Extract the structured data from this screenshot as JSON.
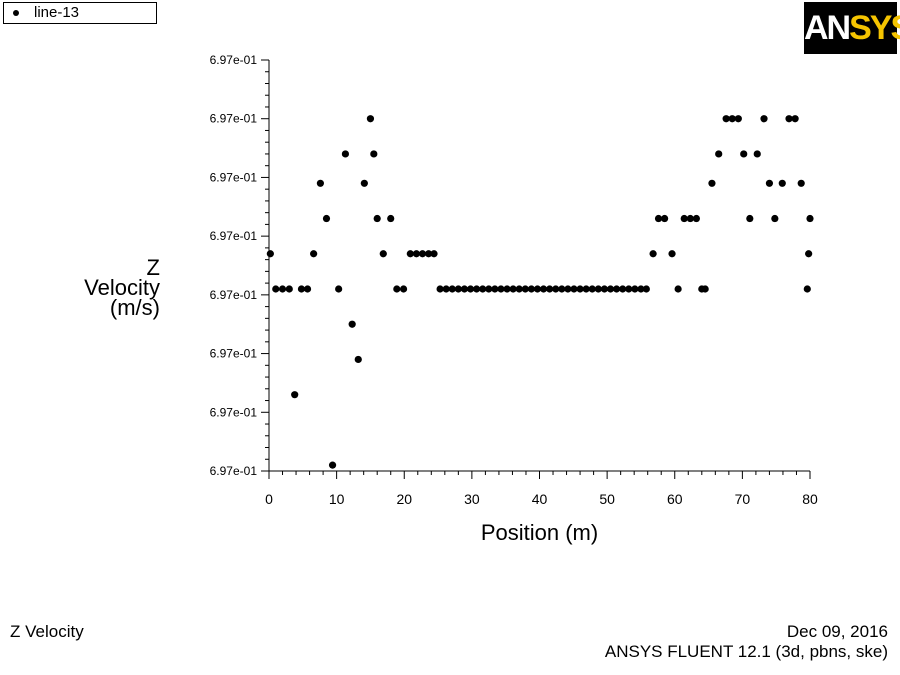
{
  "legend": {
    "label": "line-13"
  },
  "logo": {
    "text_main": "AN",
    "text_accent": "SYS"
  },
  "footer": {
    "left": "Z Velocity",
    "right_date": "Dec 09, 2016",
    "right_software": "ANSYS FLUENT 12.1 (3d, pbns, ske)"
  },
  "chart_data": {
    "type": "scatter",
    "xlabel": "Position (m)",
    "ylabel_lines": [
      "Z",
      "Velocity",
      "(m/s)"
    ],
    "xlim": [
      0,
      80
    ],
    "x_ticks": [
      "0",
      "10",
      "20",
      "30",
      "40",
      "50",
      "60",
      "70",
      "80"
    ],
    "y_ticks": [
      "6.97e-01",
      "6.97e-01",
      "6.97e-01",
      "6.97e-01",
      "6.97e-01",
      "6.97e-01",
      "6.97e-01",
      "6.97e-01"
    ],
    "ylim_note": "tick labels all read 6.97e-01; y values below are in tick-interval units (0 = bottom tick, 7 = top tick)",
    "ylim": [
      0,
      7
    ],
    "series": [
      {
        "points": [
          [
            0.2,
            3.7
          ],
          [
            1.0,
            3.1
          ],
          [
            2.0,
            3.1
          ],
          [
            3.0,
            3.1
          ],
          [
            3.8,
            1.3
          ],
          [
            4.8,
            3.1
          ],
          [
            5.7,
            3.1
          ],
          [
            6.6,
            3.7
          ],
          [
            7.6,
            4.9
          ],
          [
            8.5,
            4.3
          ],
          [
            9.4,
            0.1
          ],
          [
            10.3,
            3.1
          ],
          [
            11.3,
            5.4
          ],
          [
            12.3,
            2.5
          ],
          [
            13.2,
            1.9
          ],
          [
            14.1,
            4.9
          ],
          [
            15.0,
            6.0
          ],
          [
            15.5,
            5.4
          ],
          [
            16.0,
            4.3
          ],
          [
            16.9,
            3.7
          ],
          [
            18.0,
            4.3
          ],
          [
            18.9,
            3.1
          ],
          [
            19.9,
            3.1
          ],
          [
            20.9,
            3.7
          ],
          [
            21.8,
            3.7
          ],
          [
            22.7,
            3.7
          ],
          [
            23.6,
            3.7
          ],
          [
            24.4,
            3.7
          ],
          [
            25.3,
            3.1
          ],
          [
            26.2,
            3.1
          ],
          [
            27.1,
            3.1
          ],
          [
            28.0,
            3.1
          ],
          [
            28.9,
            3.1
          ],
          [
            29.8,
            3.1
          ],
          [
            30.7,
            3.1
          ],
          [
            31.6,
            3.1
          ],
          [
            32.5,
            3.1
          ],
          [
            33.4,
            3.1
          ],
          [
            34.3,
            3.1
          ],
          [
            35.2,
            3.1
          ],
          [
            36.1,
            3.1
          ],
          [
            37.0,
            3.1
          ],
          [
            37.9,
            3.1
          ],
          [
            38.8,
            3.1
          ],
          [
            39.7,
            3.1
          ],
          [
            40.6,
            3.1
          ],
          [
            41.5,
            3.1
          ],
          [
            42.4,
            3.1
          ],
          [
            43.3,
            3.1
          ],
          [
            44.2,
            3.1
          ],
          [
            45.1,
            3.1
          ],
          [
            46.0,
            3.1
          ],
          [
            46.9,
            3.1
          ],
          [
            47.8,
            3.1
          ],
          [
            48.7,
            3.1
          ],
          [
            49.6,
            3.1
          ],
          [
            50.5,
            3.1
          ],
          [
            51.4,
            3.1
          ],
          [
            52.3,
            3.1
          ],
          [
            53.2,
            3.1
          ],
          [
            54.1,
            3.1
          ],
          [
            55.0,
            3.1
          ],
          [
            55.8,
            3.1
          ],
          [
            56.8,
            3.7
          ],
          [
            57.6,
            4.3
          ],
          [
            58.5,
            4.3
          ],
          [
            59.6,
            3.7
          ],
          [
            60.5,
            3.1
          ],
          [
            61.4,
            4.3
          ],
          [
            62.3,
            4.3
          ],
          [
            63.2,
            4.3
          ],
          [
            64.0,
            3.1
          ],
          [
            64.5,
            3.1
          ],
          [
            65.5,
            4.9
          ],
          [
            66.5,
            5.4
          ],
          [
            67.6,
            6.0
          ],
          [
            68.5,
            6.0
          ],
          [
            69.4,
            6.0
          ],
          [
            70.2,
            5.4
          ],
          [
            71.1,
            4.3
          ],
          [
            72.2,
            5.4
          ],
          [
            73.2,
            6.0
          ],
          [
            74.0,
            4.9
          ],
          [
            74.8,
            4.3
          ],
          [
            75.9,
            4.9
          ],
          [
            76.9,
            6.0
          ],
          [
            77.8,
            6.0
          ],
          [
            78.7,
            4.9
          ],
          [
            79.6,
            3.1
          ],
          [
            79.8,
            3.7
          ],
          [
            80.0,
            4.3
          ]
        ]
      }
    ]
  }
}
